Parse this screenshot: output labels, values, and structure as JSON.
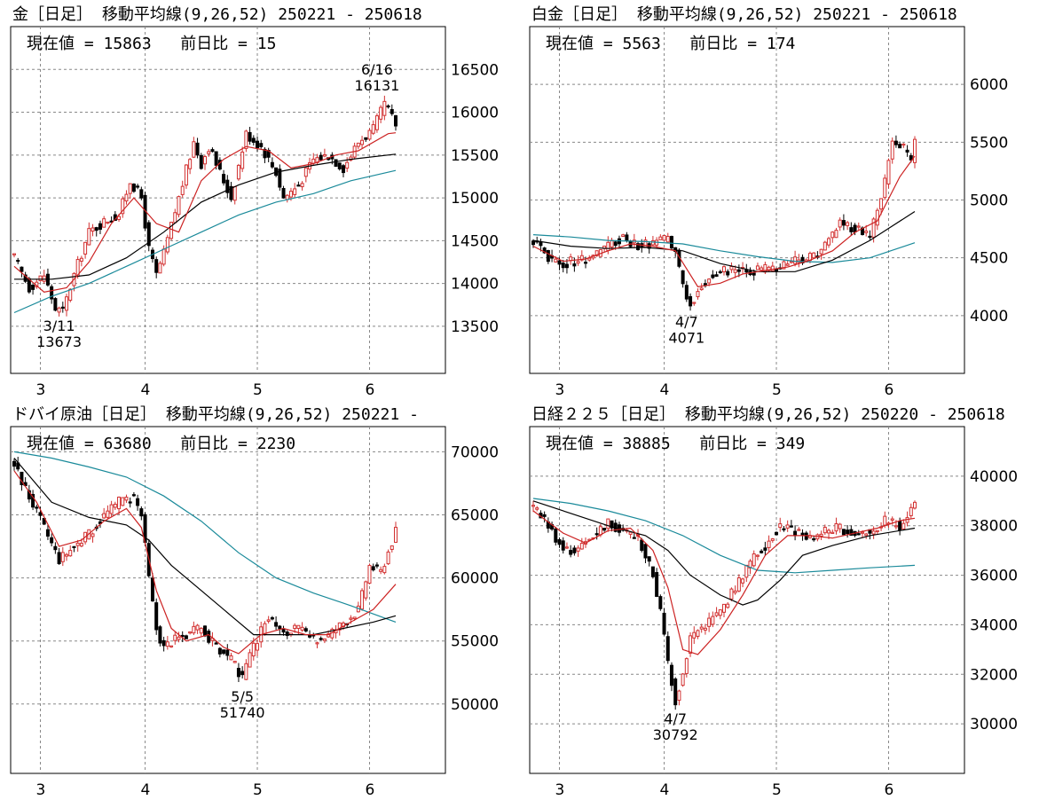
{
  "colors": {
    "up": "#d23030",
    "down": "#000000",
    "ma9": "#cc2222",
    "ma26": "#000000",
    "ma52": "#1a8a9a",
    "grid": "#888888"
  },
  "chart_data": [
    {
      "type": "candlestick",
      "title": "金［日足］ 移動平均線(9,26,52) 250221 - 250618",
      "current_label": "現在値 = 15863",
      "change_label": "前日比 = 15",
      "x_ticks": [
        "3",
        "4",
        "5",
        "6"
      ],
      "y_ticks": [
        13500,
        14000,
        14500,
        15000,
        15500,
        16000,
        16500
      ],
      "ylim": [
        12950,
        17000
      ],
      "path": [
        [
          0,
          14300
        ],
        [
          4,
          13950
        ],
        [
          8,
          14100
        ],
        [
          11,
          13700
        ],
        [
          13,
          13680
        ],
        [
          16,
          14100
        ],
        [
          20,
          14600
        ],
        [
          25,
          14750
        ],
        [
          28,
          14800
        ],
        [
          31,
          15200
        ],
        [
          34,
          15000
        ],
        [
          36,
          14400
        ],
        [
          38,
          14100
        ],
        [
          40,
          14350
        ],
        [
          44,
          15000
        ],
        [
          48,
          15650
        ],
        [
          50,
          15400
        ],
        [
          52,
          15600
        ],
        [
          56,
          15200
        ],
        [
          58,
          15000
        ],
        [
          62,
          15750
        ],
        [
          66,
          15600
        ],
        [
          70,
          15300
        ],
        [
          72,
          15000
        ],
        [
          76,
          15150
        ],
        [
          80,
          15450
        ],
        [
          84,
          15500
        ],
        [
          88,
          15350
        ],
        [
          92,
          15650
        ],
        [
          96,
          15800
        ],
        [
          99,
          16100
        ],
        [
          102,
          15860
        ]
      ],
      "ma9": [
        [
          0,
          14200
        ],
        [
          8,
          13900
        ],
        [
          14,
          13950
        ],
        [
          20,
          14250
        ],
        [
          26,
          14700
        ],
        [
          32,
          15000
        ],
        [
          38,
          14700
        ],
        [
          44,
          14600
        ],
        [
          50,
          15200
        ],
        [
          56,
          15450
        ],
        [
          62,
          15600
        ],
        [
          68,
          15550
        ],
        [
          74,
          15350
        ],
        [
          80,
          15400
        ],
        [
          86,
          15500
        ],
        [
          92,
          15550
        ],
        [
          100,
          15750
        ],
        [
          102,
          15760
        ]
      ],
      "ma26": [
        [
          0,
          14050
        ],
        [
          10,
          14050
        ],
        [
          20,
          14100
        ],
        [
          30,
          14300
        ],
        [
          40,
          14600
        ],
        [
          50,
          14950
        ],
        [
          60,
          15150
        ],
        [
          70,
          15300
        ],
        [
          80,
          15380
        ],
        [
          90,
          15450
        ],
        [
          102,
          15510
        ]
      ],
      "ma52": [
        [
          0,
          13660
        ],
        [
          10,
          13850
        ],
        [
          20,
          14000
        ],
        [
          30,
          14200
        ],
        [
          40,
          14400
        ],
        [
          50,
          14600
        ],
        [
          60,
          14800
        ],
        [
          70,
          14950
        ],
        [
          80,
          15050
        ],
        [
          90,
          15200
        ],
        [
          102,
          15320
        ]
      ],
      "annotations": [
        {
          "date": "6/16",
          "value": "16131",
          "index": 97,
          "price": 16131,
          "pos": "above"
        },
        {
          "date": "3/11",
          "value": "13673",
          "index": 12,
          "price": 13673,
          "pos": "below"
        }
      ]
    },
    {
      "type": "candlestick",
      "title": "白金［日足］ 移動平均線(9,26,52) 250221 - 250618",
      "current_label": "現在値 = 5563",
      "change_label": "前日比 = 174",
      "x_ticks": [
        "3",
        "4",
        "5",
        "6"
      ],
      "y_ticks": [
        4000,
        4500,
        5000,
        5500,
        6000
      ],
      "ylim": [
        3500,
        6500
      ],
      "path": [
        [
          0,
          4650
        ],
        [
          4,
          4500
        ],
        [
          8,
          4450
        ],
        [
          12,
          4480
        ],
        [
          16,
          4520
        ],
        [
          20,
          4600
        ],
        [
          24,
          4680
        ],
        [
          28,
          4600
        ],
        [
          32,
          4620
        ],
        [
          36,
          4660
        ],
        [
          38,
          4550
        ],
        [
          40,
          4250
        ],
        [
          42,
          4090
        ],
        [
          44,
          4200
        ],
        [
          46,
          4300
        ],
        [
          50,
          4400
        ],
        [
          56,
          4380
        ],
        [
          60,
          4400
        ],
        [
          66,
          4430
        ],
        [
          70,
          4480
        ],
        [
          74,
          4500
        ],
        [
          78,
          4600
        ],
        [
          82,
          4800
        ],
        [
          86,
          4750
        ],
        [
          90,
          4700
        ],
        [
          93,
          5000
        ],
        [
          96,
          5500
        ],
        [
          99,
          5450
        ],
        [
          101,
          5350
        ],
        [
          102,
          5560
        ]
      ],
      "ma9": [
        [
          0,
          4600
        ],
        [
          8,
          4470
        ],
        [
          14,
          4490
        ],
        [
          20,
          4560
        ],
        [
          26,
          4620
        ],
        [
          32,
          4600
        ],
        [
          38,
          4560
        ],
        [
          44,
          4250
        ],
        [
          50,
          4280
        ],
        [
          56,
          4360
        ],
        [
          62,
          4390
        ],
        [
          68,
          4420
        ],
        [
          74,
          4480
        ],
        [
          80,
          4560
        ],
        [
          86,
          4720
        ],
        [
          92,
          4820
        ],
        [
          98,
          5200
        ],
        [
          102,
          5380
        ]
      ],
      "ma26": [
        [
          0,
          4650
        ],
        [
          10,
          4600
        ],
        [
          20,
          4580
        ],
        [
          30,
          4590
        ],
        [
          40,
          4560
        ],
        [
          50,
          4450
        ],
        [
          60,
          4380
        ],
        [
          70,
          4380
        ],
        [
          80,
          4480
        ],
        [
          90,
          4650
        ],
        [
          102,
          4900
        ]
      ],
      "ma52": [
        [
          0,
          4700
        ],
        [
          10,
          4680
        ],
        [
          20,
          4650
        ],
        [
          30,
          4640
        ],
        [
          40,
          4620
        ],
        [
          50,
          4560
        ],
        [
          60,
          4510
        ],
        [
          70,
          4470
        ],
        [
          80,
          4460
        ],
        [
          90,
          4500
        ],
        [
          102,
          4630
        ]
      ],
      "annotations": [
        {
          "date": "4/7",
          "value": "4071",
          "index": 41,
          "price": 4071,
          "pos": "below"
        }
      ]
    },
    {
      "type": "candlestick",
      "title": "ドバイ原油［日足］ 移動平均線(9,26,52) 250221 -",
      "current_label": "現在値 = 63680",
      "change_label": "前日比 = 2230",
      "x_ticks": [
        "3",
        "4",
        "5",
        "6"
      ],
      "y_ticks": [
        50000,
        55000,
        60000,
        65000,
        70000
      ],
      "ylim": [
        44500,
        72000
      ],
      "path": [
        [
          0,
          69000
        ],
        [
          4,
          66500
        ],
        [
          8,
          64000
        ],
        [
          12,
          61500
        ],
        [
          16,
          62500
        ],
        [
          20,
          63500
        ],
        [
          24,
          65000
        ],
        [
          28,
          66000
        ],
        [
          32,
          66500
        ],
        [
          34,
          65000
        ],
        [
          36,
          60000
        ],
        [
          38,
          56000
        ],
        [
          40,
          54500
        ],
        [
          42,
          55000
        ],
        [
          46,
          55500
        ],
        [
          50,
          56000
        ],
        [
          54,
          54500
        ],
        [
          58,
          53500
        ],
        [
          61,
          52000
        ],
        [
          64,
          54500
        ],
        [
          68,
          57000
        ],
        [
          72,
          55500
        ],
        [
          76,
          56000
        ],
        [
          80,
          55000
        ],
        [
          84,
          55500
        ],
        [
          88,
          56500
        ],
        [
          92,
          57500
        ],
        [
          95,
          61000
        ],
        [
          98,
          60500
        ],
        [
          102,
          63700
        ]
      ],
      "ma9": [
        [
          0,
          68500
        ],
        [
          6,
          66000
        ],
        [
          12,
          62500
        ],
        [
          18,
          63000
        ],
        [
          24,
          64500
        ],
        [
          30,
          65500
        ],
        [
          34,
          64000
        ],
        [
          38,
          59000
        ],
        [
          42,
          56000
        ],
        [
          46,
          55000
        ],
        [
          52,
          55500
        ],
        [
          56,
          54500
        ],
        [
          60,
          54000
        ],
        [
          66,
          55500
        ],
        [
          72,
          56000
        ],
        [
          78,
          55500
        ],
        [
          84,
          55500
        ],
        [
          90,
          56500
        ],
        [
          96,
          57500
        ],
        [
          102,
          59500
        ]
      ],
      "ma26": [
        [
          0,
          69500
        ],
        [
          10,
          66000
        ],
        [
          20,
          64800
        ],
        [
          30,
          64200
        ],
        [
          36,
          63000
        ],
        [
          42,
          61000
        ],
        [
          50,
          59000
        ],
        [
          58,
          57000
        ],
        [
          64,
          55500
        ],
        [
          72,
          55500
        ],
        [
          80,
          55500
        ],
        [
          88,
          56000
        ],
        [
          96,
          56500
        ],
        [
          102,
          57000
        ]
      ],
      "ma52": [
        [
          0,
          70000
        ],
        [
          10,
          69500
        ],
        [
          20,
          68800
        ],
        [
          30,
          68000
        ],
        [
          40,
          66500
        ],
        [
          50,
          64500
        ],
        [
          60,
          62000
        ],
        [
          70,
          60000
        ],
        [
          80,
          58800
        ],
        [
          90,
          57800
        ],
        [
          102,
          56500
        ]
      ],
      "annotations": [
        {
          "date": "5/5",
          "value": "51740",
          "index": 61,
          "price": 51740,
          "pos": "below"
        }
      ]
    },
    {
      "type": "candlestick",
      "title": "日経２２５［日足］ 移動平均線(9,26,52) 250220 - 250618",
      "current_label": "現在値 = 38885",
      "change_label": "前日比 = 349",
      "x_ticks": [
        "3",
        "4",
        "5",
        "6"
      ],
      "y_ticks": [
        30000,
        32000,
        34000,
        36000,
        38000,
        40000
      ],
      "ylim": [
        28000,
        42000
      ],
      "path": [
        [
          0,
          38800
        ],
        [
          4,
          38000
        ],
        [
          8,
          37000
        ],
        [
          12,
          37000
        ],
        [
          16,
          37600
        ],
        [
          20,
          38100
        ],
        [
          24,
          37800
        ],
        [
          28,
          37500
        ],
        [
          32,
          36000
        ],
        [
          34,
          34500
        ],
        [
          36,
          32500
        ],
        [
          38,
          30900
        ],
        [
          40,
          32000
        ],
        [
          42,
          33500
        ],
        [
          46,
          34000
        ],
        [
          50,
          34500
        ],
        [
          54,
          35500
        ],
        [
          58,
          36500
        ],
        [
          62,
          37200
        ],
        [
          66,
          38000
        ],
        [
          70,
          37800
        ],
        [
          74,
          37500
        ],
        [
          78,
          37800
        ],
        [
          82,
          37900
        ],
        [
          86,
          37600
        ],
        [
          90,
          37800
        ],
        [
          94,
          38200
        ],
        [
          98,
          38000
        ],
        [
          102,
          38880
        ]
      ],
      "ma9": [
        [
          0,
          38600
        ],
        [
          8,
          37700
        ],
        [
          14,
          37300
        ],
        [
          20,
          37800
        ],
        [
          26,
          37900
        ],
        [
          32,
          37000
        ],
        [
          36,
          35500
        ],
        [
          40,
          33000
        ],
        [
          44,
          32800
        ],
        [
          50,
          33800
        ],
        [
          56,
          35200
        ],
        [
          62,
          36800
        ],
        [
          68,
          37600
        ],
        [
          74,
          37600
        ],
        [
          80,
          37500
        ],
        [
          86,
          37700
        ],
        [
          92,
          37900
        ],
        [
          98,
          38200
        ],
        [
          102,
          38300
        ]
      ],
      "ma26": [
        [
          0,
          39000
        ],
        [
          10,
          38500
        ],
        [
          20,
          38000
        ],
        [
          30,
          37600
        ],
        [
          36,
          37000
        ],
        [
          42,
          36000
        ],
        [
          50,
          35200
        ],
        [
          56,
          34800
        ],
        [
          60,
          35000
        ],
        [
          66,
          35800
        ],
        [
          72,
          36800
        ],
        [
          80,
          37200
        ],
        [
          90,
          37600
        ],
        [
          102,
          37900
        ]
      ],
      "ma52": [
        [
          0,
          39100
        ],
        [
          10,
          38900
        ],
        [
          20,
          38600
        ],
        [
          30,
          38200
        ],
        [
          40,
          37600
        ],
        [
          50,
          36800
        ],
        [
          60,
          36200
        ],
        [
          70,
          36100
        ],
        [
          80,
          36200
        ],
        [
          90,
          36300
        ],
        [
          102,
          36400
        ]
      ],
      "annotations": [
        {
          "date": "4/7",
          "value": "30792",
          "index": 38,
          "price": 30792,
          "pos": "below"
        }
      ]
    }
  ]
}
